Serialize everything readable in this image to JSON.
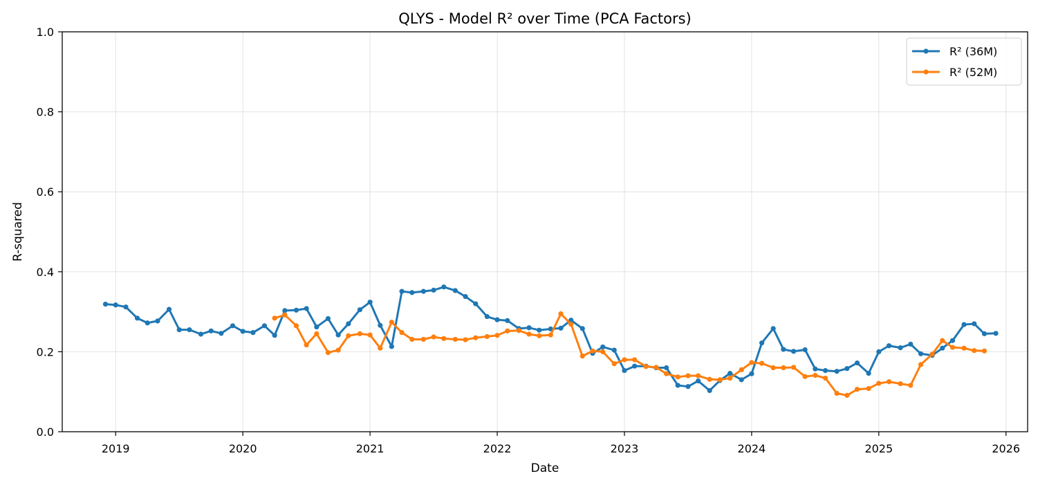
{
  "chart_data": {
    "type": "line",
    "title": "QLYS - Model R² over Time (PCA Factors)",
    "xlabel": "Date",
    "ylabel": "R-squared",
    "ylim": [
      0,
      1.0
    ],
    "xlim": [
      2018.58,
      2026.17
    ],
    "xticks": [
      2019,
      2020,
      2021,
      2022,
      2023,
      2024,
      2025,
      2026
    ],
    "yticks": [
      0.0,
      0.2,
      0.4,
      0.6,
      0.8,
      1.0
    ],
    "xtick_labels": [
      "2019",
      "2020",
      "2021",
      "2022",
      "2023",
      "2024",
      "2025",
      "2026"
    ],
    "ytick_labels": [
      "0.0",
      "0.2",
      "0.4",
      "0.6",
      "0.8",
      "1.0"
    ],
    "grid": true,
    "legend_position": "top-right",
    "series": [
      {
        "name": "R² (36M)",
        "color": "#1f77b4",
        "points": [
          [
            2018.92,
            0.319
          ],
          [
            2019.0,
            0.317
          ],
          [
            2019.08,
            0.312
          ],
          [
            2019.17,
            0.284
          ],
          [
            2019.25,
            0.272
          ],
          [
            2019.33,
            0.277
          ],
          [
            2019.42,
            0.306
          ],
          [
            2019.5,
            0.255
          ],
          [
            2019.58,
            0.255
          ],
          [
            2019.67,
            0.244
          ],
          [
            2019.75,
            0.252
          ],
          [
            2019.83,
            0.246
          ],
          [
            2019.92,
            0.265
          ],
          [
            2020.0,
            0.251
          ],
          [
            2020.08,
            0.248
          ],
          [
            2020.17,
            0.265
          ],
          [
            2020.25,
            0.241
          ],
          [
            2020.33,
            0.303
          ],
          [
            2020.42,
            0.304
          ],
          [
            2020.5,
            0.308
          ],
          [
            2020.58,
            0.262
          ],
          [
            2020.67,
            0.283
          ],
          [
            2020.75,
            0.242
          ],
          [
            2020.83,
            0.27
          ],
          [
            2020.92,
            0.305
          ],
          [
            2021.0,
            0.324
          ],
          [
            2021.08,
            0.266
          ],
          [
            2021.17,
            0.213
          ],
          [
            2021.25,
            0.351
          ],
          [
            2021.33,
            0.348
          ],
          [
            2021.42,
            0.351
          ],
          [
            2021.5,
            0.354
          ],
          [
            2021.58,
            0.362
          ],
          [
            2021.67,
            0.353
          ],
          [
            2021.75,
            0.338
          ],
          [
            2021.83,
            0.32
          ],
          [
            2021.92,
            0.288
          ],
          [
            2022.0,
            0.28
          ],
          [
            2022.08,
            0.278
          ],
          [
            2022.17,
            0.258
          ],
          [
            2022.25,
            0.26
          ],
          [
            2022.33,
            0.254
          ],
          [
            2022.42,
            0.257
          ],
          [
            2022.5,
            0.259
          ],
          [
            2022.58,
            0.279
          ],
          [
            2022.67,
            0.258
          ],
          [
            2022.75,
            0.196
          ],
          [
            2022.83,
            0.212
          ],
          [
            2022.92,
            0.204
          ],
          [
            2023.0,
            0.153
          ],
          [
            2023.08,
            0.164
          ],
          [
            2023.17,
            0.164
          ],
          [
            2023.25,
            0.16
          ],
          [
            2023.33,
            0.16
          ],
          [
            2023.42,
            0.116
          ],
          [
            2023.5,
            0.113
          ],
          [
            2023.58,
            0.127
          ],
          [
            2023.67,
            0.103
          ],
          [
            2023.75,
            0.128
          ],
          [
            2023.83,
            0.146
          ],
          [
            2023.92,
            0.13
          ],
          [
            2024.0,
            0.145
          ],
          [
            2024.08,
            0.222
          ],
          [
            2024.17,
            0.258
          ],
          [
            2024.25,
            0.206
          ],
          [
            2024.33,
            0.201
          ],
          [
            2024.42,
            0.205
          ],
          [
            2024.5,
            0.157
          ],
          [
            2024.58,
            0.153
          ],
          [
            2024.67,
            0.151
          ],
          [
            2024.75,
            0.158
          ],
          [
            2024.83,
            0.172
          ],
          [
            2024.92,
            0.146
          ],
          [
            2025.0,
            0.2
          ],
          [
            2025.08,
            0.215
          ],
          [
            2025.17,
            0.21
          ],
          [
            2025.25,
            0.219
          ],
          [
            2025.33,
            0.195
          ],
          [
            2025.42,
            0.191
          ],
          [
            2025.5,
            0.209
          ],
          [
            2025.58,
            0.228
          ],
          [
            2025.67,
            0.268
          ],
          [
            2025.75,
            0.27
          ],
          [
            2025.83,
            0.245
          ],
          [
            2025.92,
            0.246
          ]
        ]
      },
      {
        "name": "R² (52M)",
        "color": "#ff7f0e",
        "points": [
          [
            2020.25,
            0.284
          ],
          [
            2020.33,
            0.292
          ],
          [
            2020.42,
            0.265
          ],
          [
            2020.5,
            0.217
          ],
          [
            2020.58,
            0.245
          ],
          [
            2020.67,
            0.198
          ],
          [
            2020.75,
            0.204
          ],
          [
            2020.83,
            0.24
          ],
          [
            2020.92,
            0.245
          ],
          [
            2021.0,
            0.242
          ],
          [
            2021.08,
            0.209
          ],
          [
            2021.17,
            0.274
          ],
          [
            2021.25,
            0.248
          ],
          [
            2021.33,
            0.231
          ],
          [
            2021.42,
            0.231
          ],
          [
            2021.5,
            0.237
          ],
          [
            2021.58,
            0.233
          ],
          [
            2021.67,
            0.231
          ],
          [
            2021.75,
            0.23
          ],
          [
            2021.83,
            0.235
          ],
          [
            2021.92,
            0.238
          ],
          [
            2022.0,
            0.241
          ],
          [
            2022.08,
            0.252
          ],
          [
            2022.17,
            0.253
          ],
          [
            2022.25,
            0.244
          ],
          [
            2022.33,
            0.24
          ],
          [
            2022.42,
            0.242
          ],
          [
            2022.5,
            0.295
          ],
          [
            2022.58,
            0.269
          ],
          [
            2022.67,
            0.189
          ],
          [
            2022.75,
            0.202
          ],
          [
            2022.83,
            0.2
          ],
          [
            2022.92,
            0.17
          ],
          [
            2023.0,
            0.18
          ],
          [
            2023.08,
            0.18
          ],
          [
            2023.17,
            0.163
          ],
          [
            2023.25,
            0.161
          ],
          [
            2023.33,
            0.145
          ],
          [
            2023.42,
            0.137
          ],
          [
            2023.5,
            0.14
          ],
          [
            2023.58,
            0.14
          ],
          [
            2023.67,
            0.131
          ],
          [
            2023.75,
            0.13
          ],
          [
            2023.83,
            0.134
          ],
          [
            2023.92,
            0.155
          ],
          [
            2024.0,
            0.173
          ],
          [
            2024.08,
            0.171
          ],
          [
            2024.17,
            0.16
          ],
          [
            2024.25,
            0.16
          ],
          [
            2024.33,
            0.161
          ],
          [
            2024.42,
            0.138
          ],
          [
            2024.5,
            0.141
          ],
          [
            2024.58,
            0.134
          ],
          [
            2024.67,
            0.096
          ],
          [
            2024.75,
            0.091
          ],
          [
            2024.83,
            0.106
          ],
          [
            2024.92,
            0.108
          ],
          [
            2025.0,
            0.121
          ],
          [
            2025.08,
            0.125
          ],
          [
            2025.17,
            0.12
          ],
          [
            2025.25,
            0.116
          ],
          [
            2025.33,
            0.168
          ],
          [
            2025.42,
            0.194
          ],
          [
            2025.5,
            0.228
          ],
          [
            2025.58,
            0.211
          ],
          [
            2025.67,
            0.209
          ],
          [
            2025.75,
            0.203
          ],
          [
            2025.83,
            0.202
          ]
        ]
      }
    ]
  }
}
